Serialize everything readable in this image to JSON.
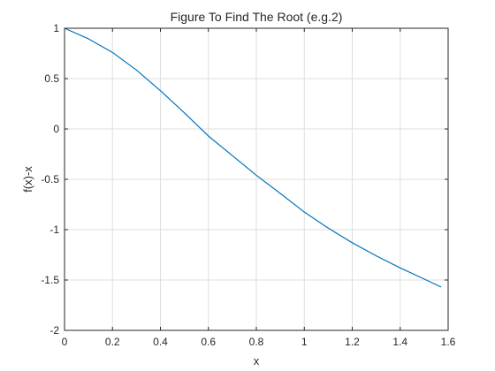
{
  "chart_data": {
    "type": "line",
    "title": "Figure To Find The Root (e.g.2)",
    "xlabel": "x",
    "ylabel": "f(x)-x",
    "xlim": [
      0,
      1.6
    ],
    "ylim": [
      -2,
      1
    ],
    "xticks": [
      0,
      0.2,
      0.4,
      0.6,
      0.8,
      1.0,
      1.2,
      1.4,
      1.6
    ],
    "xtick_labels": [
      "0",
      "0.2",
      "0.4",
      "0.6",
      "0.8",
      "1",
      "1.2",
      "1.4",
      "1.6"
    ],
    "yticks": [
      -2,
      -1.5,
      -1,
      -0.5,
      0,
      0.5,
      1
    ],
    "ytick_labels": [
      "-2",
      "-1.5",
      "-1",
      "-0.5",
      "0",
      "0.5",
      "1"
    ],
    "grid": true,
    "line_color": "#0072bd",
    "series": [
      {
        "x": [
          0,
          0.1,
          0.2,
          0.3,
          0.4,
          0.5,
          0.6,
          0.7,
          0.8,
          0.9,
          1.0,
          1.1,
          1.2,
          1.3,
          1.4,
          1.5,
          1.5708
        ],
        "y": [
          1.0,
          0.895,
          0.76,
          0.585,
          0.38,
          0.16,
          -0.07,
          -0.265,
          -0.46,
          -0.64,
          -0.825,
          -0.985,
          -1.13,
          -1.26,
          -1.38,
          -1.49,
          -1.57
        ]
      }
    ]
  }
}
